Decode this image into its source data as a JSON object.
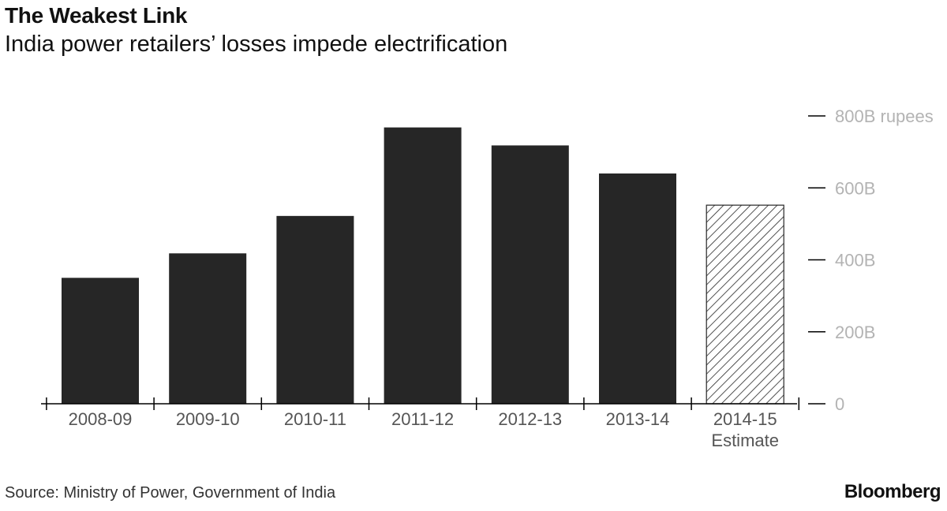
{
  "header": {
    "title": "The Weakest Link",
    "subtitle": "India power retailers’ losses impede electrification"
  },
  "footer": {
    "source": "Source: Ministry of Power, Government of India",
    "brand": "Bloomberg"
  },
  "colors": {
    "bar": "#262626",
    "estimate_hatch": "#262626",
    "axis": "#000000",
    "tick_label": "#b3b3b3",
    "category_label": "#555555"
  },
  "chart_data": {
    "type": "bar",
    "title": "The Weakest Link",
    "subtitle": "India power retailers’ losses impede electrification",
    "categories": [
      "2008-09",
      "2009-10",
      "2010-11",
      "2011-12",
      "2012-13",
      "2013-14",
      "2014-15"
    ],
    "category_sublabels": [
      "",
      "",
      "",
      "",
      "",
      "",
      "Estimate"
    ],
    "values": [
      350,
      418,
      522,
      768,
      718,
      640,
      552
    ],
    "estimate": [
      false,
      false,
      false,
      false,
      false,
      false,
      true
    ],
    "ylim": [
      0,
      800
    ],
    "yticks": [
      0,
      200,
      400,
      600,
      800
    ],
    "ytick_labels": [
      "0",
      "200B",
      "400B",
      "600B",
      "800B rupees"
    ],
    "ylabel": "",
    "xlabel": "",
    "y_axis_side": "right",
    "grid": false
  }
}
